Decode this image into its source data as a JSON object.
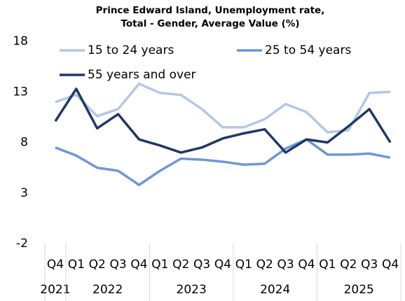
{
  "chart_data": {
    "type": "line",
    "title": [
      "Prince Edward Island, Unemployment rate,",
      "Total - Gender, Average Value (%)"
    ],
    "groups": [
      {
        "label": "2021",
        "categories": [
          "Q4"
        ]
      },
      {
        "label": "2022",
        "categories": [
          "Q1",
          "Q2",
          "Q3",
          "Q4"
        ]
      },
      {
        "label": "2023",
        "categories": [
          "Q1",
          "Q2",
          "Q3",
          "Q4"
        ]
      },
      {
        "label": "2024",
        "categories": [
          "Q1",
          "Q2",
          "Q3",
          "Q4"
        ]
      },
      {
        "label": "2025",
        "categories": [
          "Q1",
          "Q2",
          "Q3",
          "Q4"
        ]
      }
    ],
    "series": [
      {
        "name": "15 to 24 years",
        "color": "#b4c7e7",
        "values": [
          12.0,
          12.7,
          10.6,
          11.3,
          13.8,
          12.9,
          12.7,
          11.3,
          9.5,
          9.5,
          10.3,
          11.8,
          11.0,
          9.0,
          9.2,
          12.9,
          13.0
        ]
      },
      {
        "name": "25 to 54 years",
        "color": "#7096d2",
        "values": [
          7.5,
          6.7,
          5.5,
          5.2,
          3.8,
          5.2,
          6.4,
          6.3,
          6.1,
          5.8,
          5.9,
          7.4,
          8.3,
          6.8,
          6.8,
          6.9,
          6.5
        ]
      },
      {
        "name": "55 years and over",
        "color": "#203864",
        "values": [
          10.1,
          13.3,
          9.4,
          10.8,
          8.3,
          7.7,
          7.0,
          7.5,
          8.4,
          8.9,
          9.3,
          7.0,
          8.3,
          8.0,
          9.6,
          11.3,
          8.0
        ]
      }
    ],
    "ylim": [
      -2,
      18
    ],
    "yticks": [
      -2,
      3,
      8,
      13,
      18
    ],
    "grid": false,
    "legend": "top"
  }
}
